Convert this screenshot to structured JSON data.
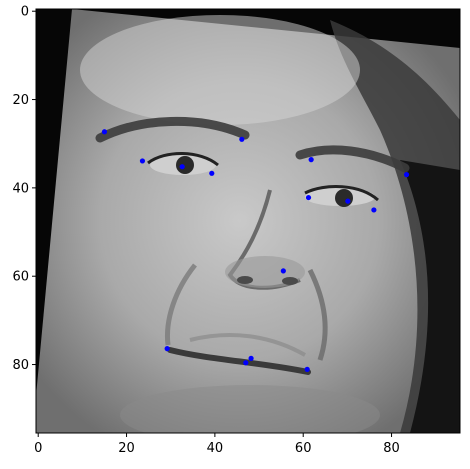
{
  "chart_data": {
    "type": "scatter",
    "title": "",
    "xlabel": "",
    "ylabel": "",
    "xlim": [
      -0.5,
      95.5
    ],
    "ylim": [
      95.5,
      -0.5
    ],
    "y_inverted": true,
    "grid": false,
    "background": "grayscale face photograph (96x96)",
    "x_ticks": [
      0,
      20,
      40,
      60,
      80
    ],
    "y_ticks": [
      0,
      20,
      40,
      60,
      80
    ],
    "x_tick_labels": [
      "0",
      "20",
      "40",
      "60",
      "80"
    ],
    "y_tick_labels": [
      "0",
      "20",
      "40",
      "60",
      "80"
    ],
    "marker_color": "#0000ff",
    "series": [
      {
        "points": [
          {
            "x": 15.0,
            "y": 27.3
          },
          {
            "x": 23.6,
            "y": 33.9
          },
          {
            "x": 32.6,
            "y": 35.2
          },
          {
            "x": 39.3,
            "y": 36.7
          },
          {
            "x": 46.1,
            "y": 29.0
          },
          {
            "x": 61.8,
            "y": 33.6
          },
          {
            "x": 61.2,
            "y": 42.2
          },
          {
            "x": 70.1,
            "y": 43.0
          },
          {
            "x": 76.0,
            "y": 45.0
          },
          {
            "x": 83.4,
            "y": 37.0
          },
          {
            "x": 55.5,
            "y": 58.8
          },
          {
            "x": 29.2,
            "y": 76.4
          },
          {
            "x": 48.2,
            "y": 78.6
          },
          {
            "x": 47.0,
            "y": 79.6
          },
          {
            "x": 60.9,
            "y": 81.1
          }
        ]
      }
    ]
  }
}
